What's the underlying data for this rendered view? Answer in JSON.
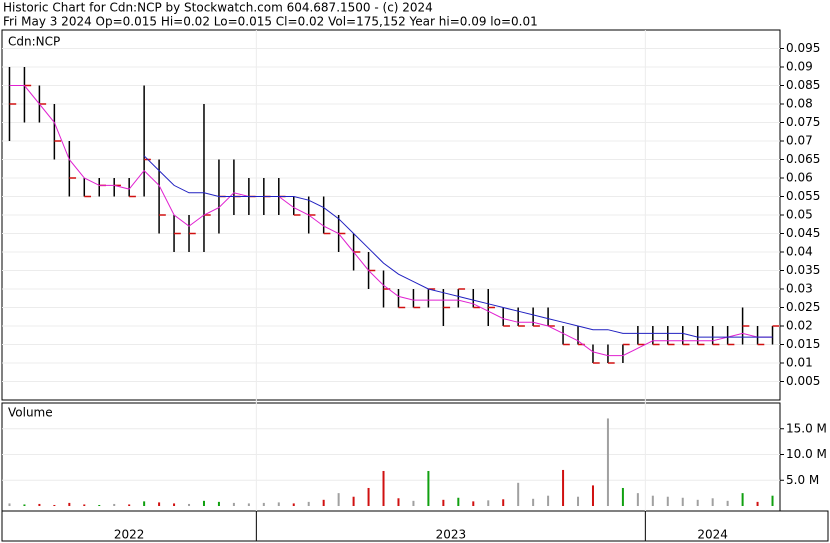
{
  "chart_data": {
    "type": "ohlc",
    "title": "Historic Chart for Cdn:NCP by Stockwatch.com 604.687.1500 - (c) 2024",
    "subtitle": "Fri May  3 2024  Op=0.015  Hi=0.02  Lo=0.015  Cl=0.02  Vol=175,152  Year hi=0.09  lo=0.01",
    "symbol_label": "Cdn:NCP",
    "bar_color": "#000000",
    "close_color": "#d01010",
    "high": [
      0.09,
      0.09,
      0.085,
      0.08,
      0.07,
      0.06,
      0.06,
      0.06,
      0.06,
      0.085,
      0.065,
      0.05,
      0.05,
      0.08,
      0.065,
      0.065,
      0.06,
      0.06,
      0.06,
      0.055,
      0.055,
      0.055,
      0.05,
      0.045,
      0.04,
      0.035,
      0.03,
      0.03,
      0.03,
      0.03,
      0.03,
      0.03,
      0.03,
      0.025,
      0.025,
      0.025,
      0.025,
      0.02,
      0.02,
      0.015,
      0.015,
      0.015,
      0.02,
      0.02,
      0.02,
      0.02,
      0.02,
      0.02,
      0.02,
      0.025,
      0.02,
      0.02
    ],
    "low": [
      0.07,
      0.075,
      0.075,
      0.065,
      0.055,
      0.055,
      0.055,
      0.055,
      0.055,
      0.055,
      0.045,
      0.04,
      0.04,
      0.04,
      0.045,
      0.05,
      0.05,
      0.05,
      0.05,
      0.05,
      0.045,
      0.045,
      0.04,
      0.035,
      0.03,
      0.025,
      0.025,
      0.025,
      0.025,
      0.02,
      0.025,
      0.025,
      0.02,
      0.02,
      0.02,
      0.02,
      0.02,
      0.015,
      0.015,
      0.01,
      0.01,
      0.01,
      0.015,
      0.015,
      0.015,
      0.015,
      0.015,
      0.015,
      0.015,
      0.015,
      0.015,
      0.015
    ],
    "close": [
      0.08,
      0.085,
      0.08,
      0.07,
      0.06,
      0.055,
      0.058,
      0.058,
      0.055,
      0.065,
      0.05,
      0.045,
      0.045,
      0.05,
      0.055,
      0.055,
      0.055,
      0.055,
      0.055,
      0.05,
      0.05,
      0.045,
      0.045,
      0.04,
      0.035,
      0.03,
      0.025,
      0.025,
      0.03,
      0.025,
      0.03,
      0.025,
      0.025,
      0.02,
      0.02,
      0.02,
      0.02,
      0.015,
      0.015,
      0.01,
      0.01,
      0.015,
      0.015,
      0.015,
      0.015,
      0.015,
      0.015,
      0.015,
      0.015,
      0.02,
      0.015,
      0.02
    ],
    "moving_averages": [
      {
        "color": "#e020d0",
        "values": [
          0.085,
          0.085,
          0.08,
          0.075,
          0.065,
          0.06,
          0.058,
          0.058,
          0.057,
          0.062,
          0.058,
          0.05,
          0.047,
          0.05,
          0.052,
          0.056,
          0.055,
          0.055,
          0.055,
          0.052,
          0.05,
          0.047,
          0.045,
          0.04,
          0.035,
          0.031,
          0.028,
          0.027,
          0.027,
          0.027,
          0.027,
          0.026,
          0.024,
          0.022,
          0.021,
          0.021,
          0.02,
          0.018,
          0.016,
          0.013,
          0.012,
          0.012,
          0.014,
          0.016,
          0.016,
          0.016,
          0.016,
          0.016,
          0.017,
          0.018,
          0.017,
          0.017
        ]
      },
      {
        "color": "#2020c0",
        "values": [
          null,
          null,
          null,
          null,
          null,
          null,
          null,
          null,
          null,
          0.066,
          0.062,
          0.058,
          0.056,
          0.056,
          0.055,
          0.055,
          0.055,
          0.055,
          0.055,
          0.055,
          0.054,
          0.052,
          0.049,
          0.045,
          0.041,
          0.037,
          0.034,
          0.032,
          0.03,
          0.029,
          0.028,
          0.027,
          0.026,
          0.025,
          0.024,
          0.023,
          0.022,
          0.021,
          0.02,
          0.019,
          0.019,
          0.018,
          0.018,
          0.018,
          0.018,
          0.018,
          0.017,
          0.017,
          0.017,
          0.017,
          0.017,
          0.017
        ]
      }
    ],
    "ylim": [
      0,
      0.1
    ],
    "yticks": [
      0.005,
      0.01,
      0.015,
      0.02,
      0.025,
      0.03,
      0.035,
      0.04,
      0.045,
      0.05,
      0.055,
      0.06,
      0.065,
      0.07,
      0.075,
      0.08,
      0.085,
      0.09,
      0.095
    ],
    "xlim": [
      0,
      52
    ],
    "xticks": [
      {
        "value": 0,
        "label": "2022"
      },
      {
        "value": 17,
        "label": "2023"
      },
      {
        "value": 43,
        "label": "2024"
      }
    ],
    "volume": {
      "label": "Volume",
      "up_color": "#10a010",
      "down_color": "#d01010",
      "flat_color": "#a0a0a0",
      "values": [
        500000,
        300000,
        400000,
        200000,
        600000,
        300000,
        200000,
        400000,
        300000,
        900000,
        700000,
        500000,
        400000,
        1000000,
        800000,
        600000,
        500000,
        600000,
        700000,
        500000,
        800000,
        1200000,
        2500000,
        1800000,
        3500000,
        6800000,
        1500000,
        1000000,
        6800000,
        1200000,
        1600000,
        900000,
        1100000,
        1300000,
        4500000,
        1400000,
        2000000,
        7000000,
        1800000,
        4000000,
        17000000,
        3500000,
        2500000,
        2000000,
        1800000,
        1600000,
        1200000,
        1500000,
        1000000,
        2500000,
        800000,
        2000000
      ],
      "ylim": [
        0,
        20000000
      ],
      "yticks": [
        {
          "value": 5000000,
          "label": "5.0 M"
        },
        {
          "value": 10000000,
          "label": "10.0 M"
        },
        {
          "value": 15000000,
          "label": "15.0 M"
        }
      ]
    }
  }
}
